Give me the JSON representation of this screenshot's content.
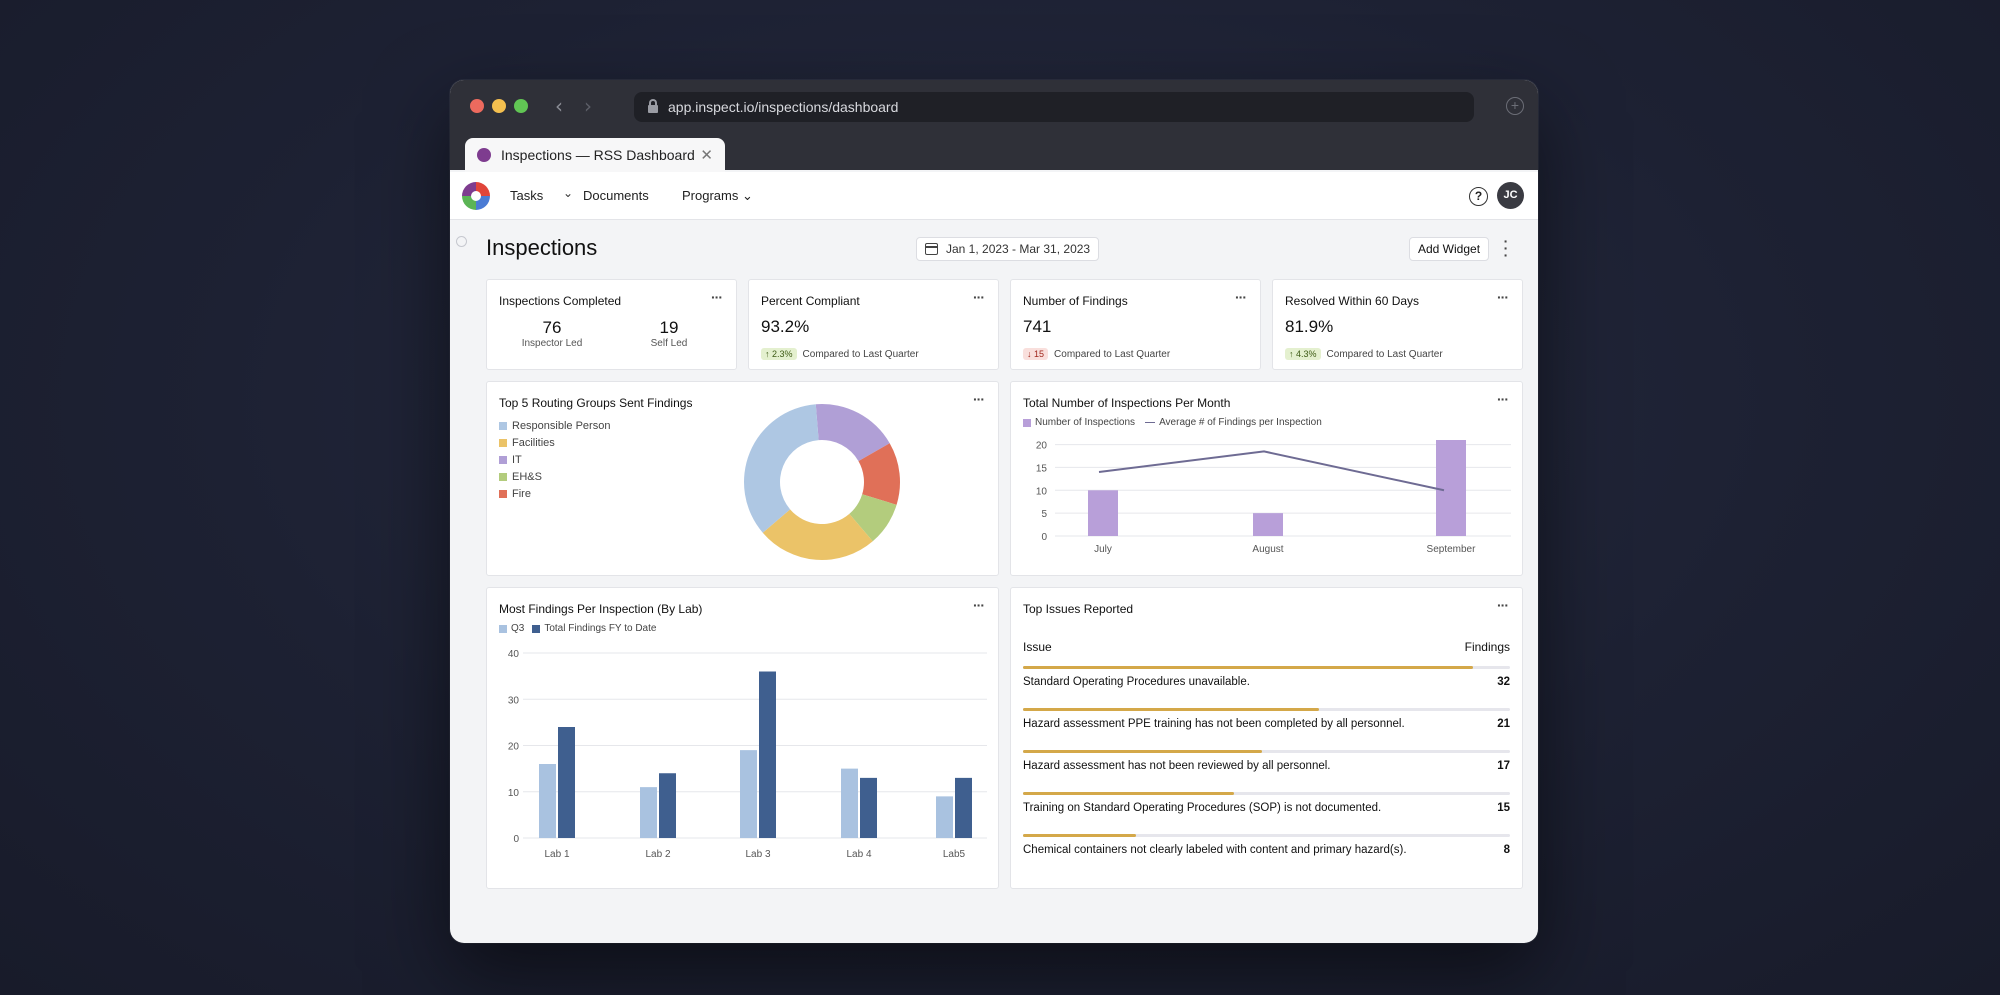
{
  "browser": {
    "url": "app.inspect.io/inspections/dashboard",
    "tab_title": "Inspections — RSS Dashboard"
  },
  "nav": {
    "tasks": "Tasks",
    "documents": "Documents",
    "programs": "Programs",
    "avatar_initials": "JC"
  },
  "page": {
    "title": "Inspections",
    "date_range": "Jan 1, 2023 - Mar 31, 2023",
    "add_widget": "Add Widget"
  },
  "kpis": {
    "completed": {
      "title": "Inspections Completed",
      "inspector_value": "76",
      "inspector_label": "Inspector Led",
      "self_value": "19",
      "self_label": "Self Led"
    },
    "compliant": {
      "title": "Percent Compliant",
      "value": "93.2%",
      "change": "2.3%",
      "compare": "Compared to Last Quarter"
    },
    "findings": {
      "title": "Number of Findings",
      "value": "741",
      "change": "15",
      "compare": "Compared to Last Quarter"
    },
    "resolved": {
      "title": "Resolved Within 60 Days",
      "value": "81.9%",
      "change": "4.3%",
      "compare": "Compared to Last Quarter"
    }
  },
  "colors": {
    "responsible": "#aec7e3",
    "facilities": "#ebc368",
    "it": "#b09fd6",
    "ehs": "#b3cc7d",
    "fire": "#e07058",
    "inspections_bar": "#b89fd9",
    "avg_line": "#6e6b93",
    "q3": "#a9c2e0",
    "fy": "#3f5f8f",
    "issue_fill": "#d4a849"
  },
  "donut": {
    "title": "Top 5 Routing Groups Sent Findings",
    "chart_data": {
      "type": "pie",
      "labels": [
        "Responsible Person",
        "Facilities",
        "IT",
        "EH&S",
        "Fire"
      ],
      "values": [
        35,
        25,
        18,
        9,
        13
      ]
    }
  },
  "monthly": {
    "title": "Total Number of Inspections Per Month",
    "legend_bars": "Number of Inspections",
    "legend_line": "Average # of Findings per Inspection",
    "chart_data": {
      "type": "bar",
      "categories": [
        "July",
        "August",
        "September"
      ],
      "series": [
        {
          "name": "Number of Inspections",
          "values": [
            10,
            5,
            21
          ]
        },
        {
          "name": "Average # of Findings per Inspection",
          "values": [
            14,
            18.5,
            10
          ]
        }
      ],
      "yticks": [
        0,
        5,
        10,
        15,
        20
      ],
      "ylim": [
        0,
        21
      ]
    }
  },
  "bylab": {
    "title": "Most Findings Per Inspection (By Lab)",
    "legend_q3": "Q3",
    "legend_fy": "Total Findings FY to Date",
    "chart_data": {
      "type": "bar",
      "categories": [
        "Lab 1",
        "Lab 2",
        "Lab 3",
        "Lab 4",
        "Lab5"
      ],
      "series": [
        {
          "name": "Q3",
          "values": [
            16,
            11,
            19,
            15,
            9
          ]
        },
        {
          "name": "Total Findings FY to Date",
          "values": [
            24,
            14,
            36,
            13,
            13
          ]
        }
      ],
      "yticks": [
        0,
        10,
        20,
        30,
        40
      ],
      "ylim": [
        0,
        40
      ]
    }
  },
  "issues": {
    "title": "Top Issues Reported",
    "col_issue": "Issue",
    "col_findings": "Findings",
    "max": 32,
    "rows": [
      {
        "label": "Standard Operating Procedures unavailable.",
        "count": 32
      },
      {
        "label": "Hazard assessment PPE training has not been completed by all personnel.",
        "count": 21
      },
      {
        "label": "Hazard assessment has not been reviewed by all personnel.",
        "count": 17
      },
      {
        "label": "Training on Standard Operating Procedures (SOP) is not documented.",
        "count": 15
      },
      {
        "label": "Chemical containers not clearly labeled with content and primary hazard(s).",
        "count": 8
      }
    ]
  }
}
